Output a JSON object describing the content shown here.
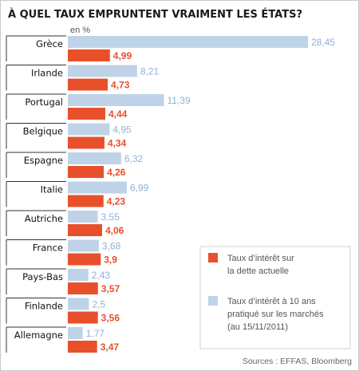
{
  "colors": {
    "current": "#e8502c",
    "long_term": "#bfd3e8",
    "long_term_label": "#8fb2d6",
    "category_box": "#333333"
  },
  "chart_data": {
    "type": "bar",
    "orientation": "horizontal",
    "title": "À QUEL TAUX EMPRUNTENT VRAIMENT LES ÉTATS?",
    "unit": "en %",
    "categories": [
      "Grèce",
      "Irlande",
      "Portugal",
      "Belgique",
      "Espagne",
      "Italie",
      "Autriche",
      "France",
      "Pays-Bas",
      "Finlande",
      "Allemagne"
    ],
    "series": [
      {
        "name": "Taux d’intérêt à 10 ans pratiqué sur les marchés (au 15/11/2011)",
        "legend_lines": [
          "Taux d’intérêt à 10 ans",
          "pratiqué sur les marchés",
          "(au 15/11/2011)"
        ],
        "values": [
          28.45,
          8.21,
          11.39,
          4.95,
          6.32,
          6.99,
          3.55,
          3.68,
          2.43,
          2.5,
          1.77
        ],
        "labels": [
          "28,45",
          "8,21",
          "11,39",
          "4,95",
          "6,32",
          "6,99",
          "3,55",
          "3,68",
          "2,43",
          "2,5",
          "1,77"
        ]
      },
      {
        "name": "Taux d’intérêt sur la dette actuelle",
        "legend_lines": [
          "Taux d’intérêt sur",
          "la dette actuelle"
        ],
        "values": [
          4.99,
          4.73,
          4.44,
          4.34,
          4.26,
          4.23,
          4.06,
          3.9,
          3.57,
          3.56,
          3.47
        ],
        "labels": [
          "4,99",
          "4,73",
          "4,44",
          "4,34",
          "4,26",
          "4,23",
          "4,06",
          "3,9",
          "3,57",
          "3,56",
          "3,47"
        ]
      }
    ],
    "xlim": [
      0,
      28.45
    ],
    "grid": false,
    "legend_position": "bottom-right",
    "source": "Sources : EFFAS, Bloomberg"
  }
}
